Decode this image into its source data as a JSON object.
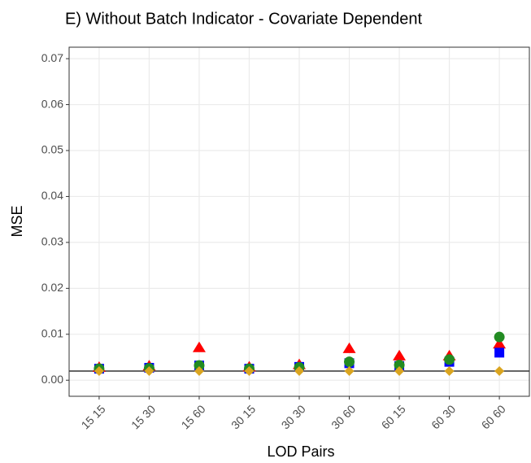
{
  "chart_data": {
    "type": "scatter",
    "title": "E)   Without Batch Indicator - Covariate Dependent",
    "x_label": "LOD Pairs",
    "y_label": "MSE",
    "categories": [
      "15 15",
      "15 30",
      "15 60",
      "30 15",
      "30 30",
      "30 60",
      "60 15",
      "60 30",
      "60 60"
    ],
    "series": [
      {
        "color": "#ff0000",
        "shape": "triangle",
        "values": [
          0.0027,
          0.003,
          0.007,
          0.0028,
          0.0033,
          0.0068,
          0.0052,
          0.0052,
          0.0078
        ]
      },
      {
        "color": "#0000ff",
        "shape": "square",
        "values": [
          0.0025,
          0.0027,
          0.0032,
          0.0025,
          0.0029,
          0.0037,
          0.0031,
          0.004,
          0.006
        ]
      },
      {
        "color": "#228b22",
        "shape": "circle",
        "values": [
          0.0025,
          0.0026,
          0.0032,
          0.0025,
          0.0028,
          0.004,
          0.0033,
          0.0045,
          0.0094
        ]
      },
      {
        "color": "#daa520",
        "shape": "diamond",
        "values": [
          0.002,
          0.002,
          0.002,
          0.002,
          0.002,
          0.002,
          0.002,
          0.002,
          0.002
        ]
      }
    ],
    "hline": 0.002,
    "ylim": [
      -0.0035,
      0.0725
    ],
    "yticks": [
      {
        "value": 0,
        "label": "0.00"
      },
      {
        "value": 0.01,
        "label": "0.01"
      },
      {
        "value": 0.02,
        "label": "0.02"
      },
      {
        "value": 0.03,
        "label": "0.03"
      },
      {
        "value": 0.04,
        "label": "0.04"
      },
      {
        "value": 0.05,
        "label": "0.05"
      },
      {
        "value": 0.06,
        "label": "0.06"
      },
      {
        "value": 0.07,
        "label": "0.07"
      }
    ],
    "grid": true
  }
}
